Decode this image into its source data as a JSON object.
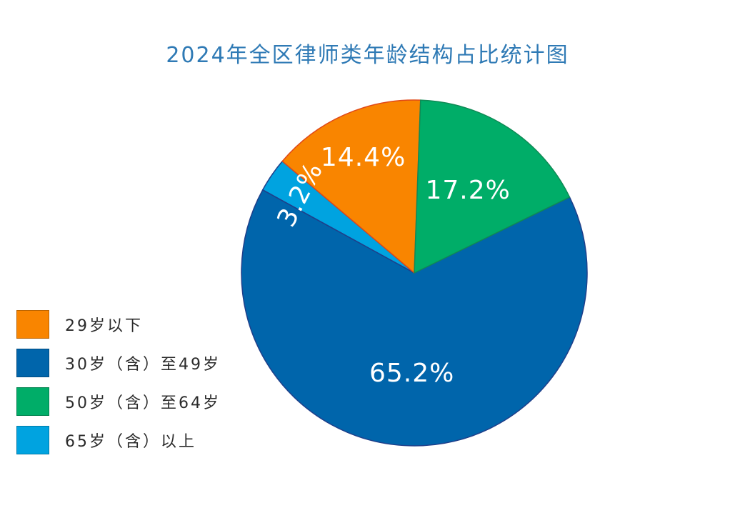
{
  "chart_data": {
    "type": "pie",
    "title": "2024年全区律师类年龄结构占比统计图",
    "unit": "%",
    "start_angle_deg": 334,
    "legend_position": "bottom-left",
    "slices": [
      {
        "name": "30岁（含）至49岁",
        "value": 65.2,
        "label": "65.2%",
        "color": "#0065ab",
        "stroke": "#1f3f8a"
      },
      {
        "name": "65岁（含）以上",
        "value": 3.2,
        "label": "3.2%",
        "color": "#00a3e0",
        "stroke": "#1f3f8a"
      },
      {
        "name": "29岁以下",
        "value": 14.4,
        "label": "14.4%",
        "color": "#f98500",
        "stroke": "#e04818"
      },
      {
        "name": "50岁（含）至64岁",
        "value": 17.2,
        "label": "17.2%",
        "color": "#00ad68",
        "stroke": "#0f8a55"
      }
    ],
    "legend": [
      {
        "name": "29岁以下",
        "color": "#f98500"
      },
      {
        "name": "30岁（含）至49岁",
        "color": "#0065ab"
      },
      {
        "name": "50岁（含）至64岁",
        "color": "#00ad68"
      },
      {
        "name": "65岁（含）以上",
        "color": "#00a3e0"
      }
    ]
  }
}
